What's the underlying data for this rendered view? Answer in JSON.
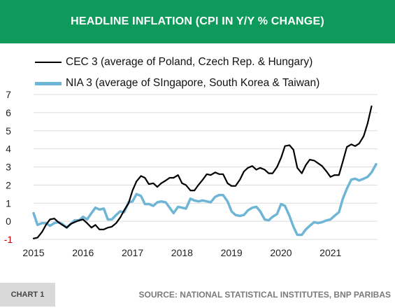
{
  "header": {
    "title": "HEADLINE INFLATION (CPI IN Y/Y % CHANGE)"
  },
  "footer": {
    "chart_label": "CHART 1",
    "source": "SOURCE: NATIONAL STATISTICAL INSTITUTES, BNP PARIBAS"
  },
  "colors": {
    "header_bg": "#0e9a5a",
    "cec3": "#000000",
    "nia3": "#6fb6d6"
  },
  "chart_data": {
    "type": "line",
    "title": "HEADLINE INFLATION (CPI IN Y/Y % CHANGE)",
    "xlabel": "",
    "ylabel": "",
    "xlim": [
      2015.0,
      2021.95
    ],
    "ylim": [
      -1,
      7
    ],
    "x_ticks": [
      2015,
      2016,
      2017,
      2018,
      2019,
      2020,
      2021
    ],
    "y_ticks": [
      -1,
      0,
      1,
      2,
      3,
      4,
      5,
      6,
      7
    ],
    "legend_position": "top-left",
    "grid": "horizontal",
    "series": [
      {
        "name": "CEC 3 (average of Poland, Czech Rep. & Hungary)",
        "points": [
          [
            2015.0,
            -0.95
          ],
          [
            2015.08,
            -0.9
          ],
          [
            2015.17,
            -0.6
          ],
          [
            2015.25,
            -0.2
          ],
          [
            2015.33,
            0.1
          ],
          [
            2015.42,
            0.15
          ],
          [
            2015.5,
            -0.05
          ],
          [
            2015.58,
            -0.2
          ],
          [
            2015.67,
            -0.35
          ],
          [
            2015.75,
            -0.15
          ],
          [
            2015.83,
            -0.05
          ],
          [
            2015.92,
            0.05
          ],
          [
            2016.0,
            0.1
          ],
          [
            2016.08,
            -0.1
          ],
          [
            2016.17,
            -0.35
          ],
          [
            2016.25,
            -0.2
          ],
          [
            2016.33,
            -0.45
          ],
          [
            2016.42,
            -0.45
          ],
          [
            2016.5,
            -0.35
          ],
          [
            2016.58,
            -0.3
          ],
          [
            2016.67,
            -0.1
          ],
          [
            2016.75,
            0.2
          ],
          [
            2016.83,
            0.6
          ],
          [
            2016.92,
            1.0
          ],
          [
            2017.0,
            1.7
          ],
          [
            2017.08,
            2.2
          ],
          [
            2017.17,
            2.5
          ],
          [
            2017.25,
            2.4
          ],
          [
            2017.33,
            2.05
          ],
          [
            2017.42,
            2.1
          ],
          [
            2017.5,
            1.9
          ],
          [
            2017.58,
            2.1
          ],
          [
            2017.67,
            2.25
          ],
          [
            2017.75,
            2.4
          ],
          [
            2017.83,
            2.4
          ],
          [
            2017.92,
            2.55
          ],
          [
            2018.0,
            2.1
          ],
          [
            2018.08,
            2.0
          ],
          [
            2018.17,
            1.7
          ],
          [
            2018.25,
            1.7
          ],
          [
            2018.33,
            2.0
          ],
          [
            2018.42,
            2.3
          ],
          [
            2018.5,
            2.6
          ],
          [
            2018.58,
            2.55
          ],
          [
            2018.67,
            2.7
          ],
          [
            2018.75,
            2.6
          ],
          [
            2018.83,
            2.6
          ],
          [
            2018.92,
            2.1
          ],
          [
            2019.0,
            1.95
          ],
          [
            2019.08,
            1.95
          ],
          [
            2019.17,
            2.3
          ],
          [
            2019.25,
            2.75
          ],
          [
            2019.33,
            2.95
          ],
          [
            2019.42,
            3.05
          ],
          [
            2019.5,
            2.85
          ],
          [
            2019.58,
            2.95
          ],
          [
            2019.67,
            2.85
          ],
          [
            2019.75,
            2.65
          ],
          [
            2019.83,
            2.65
          ],
          [
            2019.92,
            3.0
          ],
          [
            2020.0,
            3.5
          ],
          [
            2020.08,
            4.15
          ],
          [
            2020.17,
            4.2
          ],
          [
            2020.25,
            3.95
          ],
          [
            2020.33,
            2.95
          ],
          [
            2020.42,
            2.65
          ],
          [
            2020.5,
            3.1
          ],
          [
            2020.58,
            3.4
          ],
          [
            2020.67,
            3.35
          ],
          [
            2020.75,
            3.2
          ],
          [
            2020.83,
            3.05
          ],
          [
            2020.92,
            2.75
          ],
          [
            2021.0,
            2.45
          ],
          [
            2021.08,
            2.55
          ],
          [
            2021.17,
            2.55
          ],
          [
            2021.25,
            3.3
          ],
          [
            2021.33,
            4.1
          ],
          [
            2021.42,
            4.25
          ],
          [
            2021.5,
            4.15
          ],
          [
            2021.58,
            4.3
          ],
          [
            2021.67,
            4.7
          ],
          [
            2021.75,
            5.4
          ],
          [
            2021.83,
            6.35
          ]
        ]
      },
      {
        "name": "NIA 3 (average of SIngapore, South Korea & Taiwan)",
        "points": [
          [
            2015.0,
            0.45
          ],
          [
            2015.08,
            -0.2
          ],
          [
            2015.17,
            -0.1
          ],
          [
            2015.25,
            -0.1
          ],
          [
            2015.33,
            -0.25
          ],
          [
            2015.42,
            -0.1
          ],
          [
            2015.5,
            -0.05
          ],
          [
            2015.58,
            -0.15
          ],
          [
            2015.67,
            -0.35
          ],
          [
            2015.75,
            -0.15
          ],
          [
            2015.83,
            0.05
          ],
          [
            2015.92,
            0.05
          ],
          [
            2016.0,
            0.25
          ],
          [
            2016.08,
            0.1
          ],
          [
            2016.17,
            0.45
          ],
          [
            2016.25,
            0.75
          ],
          [
            2016.33,
            0.65
          ],
          [
            2016.42,
            0.7
          ],
          [
            2016.5,
            0.1
          ],
          [
            2016.58,
            0.1
          ],
          [
            2016.67,
            0.35
          ],
          [
            2016.75,
            0.55
          ],
          [
            2016.83,
            0.5
          ],
          [
            2016.92,
            1.05
          ],
          [
            2017.0,
            1.1
          ],
          [
            2017.08,
            1.5
          ],
          [
            2017.17,
            1.4
          ],
          [
            2017.25,
            0.95
          ],
          [
            2017.33,
            0.95
          ],
          [
            2017.42,
            0.85
          ],
          [
            2017.5,
            1.05
          ],
          [
            2017.58,
            1.1
          ],
          [
            2017.67,
            1.05
          ],
          [
            2017.75,
            0.75
          ],
          [
            2017.83,
            0.45
          ],
          [
            2017.92,
            0.8
          ],
          [
            2018.0,
            0.75
          ],
          [
            2018.08,
            0.7
          ],
          [
            2018.17,
            1.25
          ],
          [
            2018.25,
            1.15
          ],
          [
            2018.33,
            1.1
          ],
          [
            2018.42,
            1.15
          ],
          [
            2018.5,
            1.1
          ],
          [
            2018.58,
            1.05
          ],
          [
            2018.67,
            1.35
          ],
          [
            2018.75,
            1.45
          ],
          [
            2018.83,
            1.45
          ],
          [
            2018.92,
            1.1
          ],
          [
            2019.0,
            0.55
          ],
          [
            2019.08,
            0.35
          ],
          [
            2019.17,
            0.3
          ],
          [
            2019.25,
            0.35
          ],
          [
            2019.33,
            0.6
          ],
          [
            2019.42,
            0.75
          ],
          [
            2019.5,
            0.8
          ],
          [
            2019.58,
            0.55
          ],
          [
            2019.67,
            0.1
          ],
          [
            2019.75,
            0.05
          ],
          [
            2019.83,
            0.25
          ],
          [
            2019.92,
            0.4
          ],
          [
            2020.0,
            0.95
          ],
          [
            2020.08,
            0.85
          ],
          [
            2020.17,
            0.3
          ],
          [
            2020.25,
            -0.3
          ],
          [
            2020.33,
            -0.75
          ],
          [
            2020.42,
            -0.75
          ],
          [
            2020.5,
            -0.45
          ],
          [
            2020.58,
            -0.25
          ],
          [
            2020.67,
            -0.05
          ],
          [
            2020.75,
            -0.1
          ],
          [
            2020.83,
            -0.05
          ],
          [
            2020.92,
            0.05
          ],
          [
            2021.0,
            0.1
          ],
          [
            2021.08,
            0.3
          ],
          [
            2021.17,
            0.5
          ],
          [
            2021.25,
            1.25
          ],
          [
            2021.33,
            1.8
          ],
          [
            2021.42,
            2.3
          ],
          [
            2021.5,
            2.35
          ],
          [
            2021.58,
            2.25
          ],
          [
            2021.67,
            2.35
          ],
          [
            2021.75,
            2.45
          ],
          [
            2021.83,
            2.7
          ],
          [
            2021.92,
            3.15
          ]
        ]
      }
    ]
  }
}
